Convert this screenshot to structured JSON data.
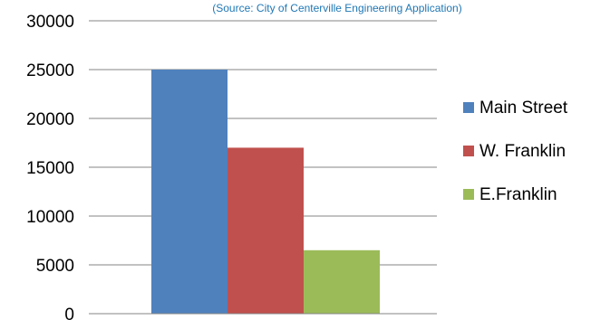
{
  "chart_data": {
    "type": "bar",
    "subtitle": "(Source: City of Centerville Engineering Application)",
    "categories": [
      ""
    ],
    "series": [
      {
        "name": "Main Street",
        "values": [
          25000
        ],
        "color": "#4F81BD"
      },
      {
        "name": "W. Franklin",
        "values": [
          17000
        ],
        "color": "#C0504D"
      },
      {
        "name": "E.Franklin",
        "values": [
          6500
        ],
        "color": "#9BBB59"
      }
    ],
    "ylim": [
      0,
      30000
    ],
    "yticks": [
      0,
      5000,
      10000,
      15000,
      20000,
      25000,
      30000
    ],
    "grid": true,
    "legend_position": "right",
    "subtitle_color": "#1F77B4"
  }
}
